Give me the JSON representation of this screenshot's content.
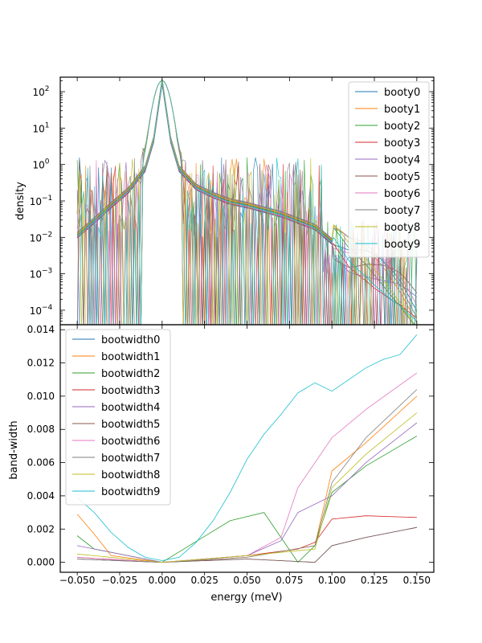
{
  "chart_data": [
    {
      "type": "line",
      "ylabel": "density",
      "xlabel": "",
      "yscale": "log",
      "ylim": [
        4e-05,
        250
      ],
      "xlim": [
        -0.06,
        0.16
      ],
      "yticks": [
        0.0001,
        0.001,
        0.01,
        0.1,
        1,
        10,
        100
      ],
      "ytick_base": "10",
      "ytick_exponents": [
        "−4",
        "−3",
        "−2",
        "−1",
        "0",
        "1",
        "2"
      ],
      "legend_position": "upper right",
      "series": [
        {
          "name": "booty0",
          "color": "#1f77b4"
        },
        {
          "name": "booty1",
          "color": "#ff7f0e"
        },
        {
          "name": "booty2",
          "color": "#2ca02c"
        },
        {
          "name": "booty3",
          "color": "#d62728"
        },
        {
          "name": "booty4",
          "color": "#9467bd"
        },
        {
          "name": "booty5",
          "color": "#8c564b"
        },
        {
          "name": "booty6",
          "color": "#e377c2"
        },
        {
          "name": "booty7",
          "color": "#7f7f7f"
        },
        {
          "name": "booty8",
          "color": "#bcbd22"
        },
        {
          "name": "booty9",
          "color": "#17becf"
        }
      ],
      "smooth_envelope": {
        "x": [
          -0.05,
          -0.04,
          -0.03,
          -0.02,
          -0.01,
          -0.005,
          0.0,
          0.005,
          0.01,
          0.02,
          0.03,
          0.04,
          0.05,
          0.06,
          0.07,
          0.08,
          0.09,
          0.1,
          0.11,
          0.12,
          0.13,
          0.14,
          0.15
        ],
        "y": [
          0.012,
          0.03,
          0.08,
          0.2,
          0.8,
          5,
          200,
          5,
          0.8,
          0.25,
          0.15,
          0.1,
          0.08,
          0.06,
          0.045,
          0.03,
          0.02,
          0.008,
          0.003,
          0.002,
          0.001,
          0.0004,
          0.0001
        ]
      }
    },
    {
      "type": "line",
      "ylabel": "band-width",
      "xlabel": "energy (meV)",
      "ylim": [
        -0.0006,
        0.0143
      ],
      "xlim": [
        -0.06,
        0.16
      ],
      "yticks": [
        0.0,
        0.002,
        0.004,
        0.006,
        0.008,
        0.01,
        0.012,
        0.014
      ],
      "ytick_labels": [
        "0.000",
        "0.002",
        "0.004",
        "0.006",
        "0.008",
        "0.010",
        "0.012",
        "0.014"
      ],
      "xticks": [
        -0.05,
        -0.025,
        0.0,
        0.025,
        0.05,
        0.075,
        0.1,
        0.125,
        0.15
      ],
      "xtick_labels": [
        "−0.050",
        "−0.025",
        "0.000",
        "0.025",
        "0.050",
        "0.075",
        "0.100",
        "0.125",
        "0.150"
      ],
      "legend_position": "upper left",
      "series": [
        {
          "name": "bootwidth0",
          "color": "#1f77b4",
          "x": [
            -0.05,
            0.0,
            0.05,
            0.09,
            0.1,
            0.12,
            0.15
          ],
          "y": [
            0.0002,
            0.0,
            0.0002,
            0.0,
            0.001,
            0.0015,
            0.0021
          ]
        },
        {
          "name": "bootwidth1",
          "color": "#ff7f0e",
          "x": [
            -0.05,
            -0.04,
            -0.03,
            0.0,
            0.05,
            0.09,
            0.1,
            0.12,
            0.15
          ],
          "y": [
            0.0029,
            0.0017,
            0.0004,
            0.0,
            0.0003,
            0.001,
            0.0055,
            0.0072,
            0.01
          ]
        },
        {
          "name": "bootwidth2",
          "color": "#2ca02c",
          "x": [
            -0.05,
            -0.04,
            0.0,
            0.04,
            0.06,
            0.08,
            0.09,
            0.1,
            0.12,
            0.15
          ],
          "y": [
            0.0016,
            0.0008,
            0.0,
            0.0025,
            0.003,
            0.0,
            0.001,
            0.0042,
            0.0058,
            0.0076
          ]
        },
        {
          "name": "bootwidth3",
          "color": "#d62728",
          "x": [
            -0.05,
            0.0,
            0.05,
            0.08,
            0.09,
            0.1,
            0.12,
            0.15
          ],
          "y": [
            0.0003,
            0.0,
            0.0004,
            0.0008,
            0.0012,
            0.0026,
            0.0028,
            0.0027
          ]
        },
        {
          "name": "bootwidth4",
          "color": "#9467bd",
          "x": [
            -0.05,
            0.0,
            0.05,
            0.07,
            0.08,
            0.1,
            0.12,
            0.15
          ],
          "y": [
            0.001,
            0.0,
            0.0004,
            0.0013,
            0.003,
            0.004,
            0.006,
            0.0084
          ]
        },
        {
          "name": "bootwidth5",
          "color": "#8c564b",
          "x": [
            -0.05,
            0.0,
            0.05,
            0.09,
            0.1,
            0.12,
            0.15
          ],
          "y": [
            0.0002,
            0.0,
            0.0002,
            0.0,
            0.001,
            0.0015,
            0.0021
          ]
        },
        {
          "name": "bootwidth6",
          "color": "#e377c2",
          "x": [
            -0.05,
            0.0,
            0.05,
            0.07,
            0.08,
            0.1,
            0.12,
            0.15
          ],
          "y": [
            0.0003,
            0.0,
            0.0004,
            0.0015,
            0.0045,
            0.0075,
            0.0092,
            0.0114
          ]
        },
        {
          "name": "bootwidth7",
          "color": "#7f7f7f",
          "x": [
            -0.05,
            0.0,
            0.05,
            0.09,
            0.1,
            0.12,
            0.15
          ],
          "y": [
            0.0002,
            0.0,
            0.0003,
            0.001,
            0.0048,
            0.0075,
            0.0104
          ]
        },
        {
          "name": "bootwidth8",
          "color": "#bcbd22",
          "x": [
            -0.05,
            0.0,
            0.05,
            0.09,
            0.1,
            0.12,
            0.15
          ],
          "y": [
            0.0005,
            0.0,
            0.0004,
            0.0008,
            0.0045,
            0.0065,
            0.009
          ]
        },
        {
          "name": "bootwidth9",
          "color": "#17becf",
          "x": [
            -0.05,
            -0.04,
            -0.03,
            -0.02,
            -0.01,
            0.0,
            0.01,
            0.02,
            0.03,
            0.04,
            0.05,
            0.06,
            0.07,
            0.08,
            0.09,
            0.1,
            0.11,
            0.12,
            0.13,
            0.14,
            0.15
          ],
          "y": [
            0.0039,
            0.003,
            0.0018,
            0.0009,
            0.0003,
            0.0001,
            0.0003,
            0.0012,
            0.0025,
            0.0042,
            0.0062,
            0.0077,
            0.0089,
            0.0102,
            0.0108,
            0.0103,
            0.011,
            0.0117,
            0.0122,
            0.0125,
            0.0137
          ]
        }
      ]
    }
  ]
}
